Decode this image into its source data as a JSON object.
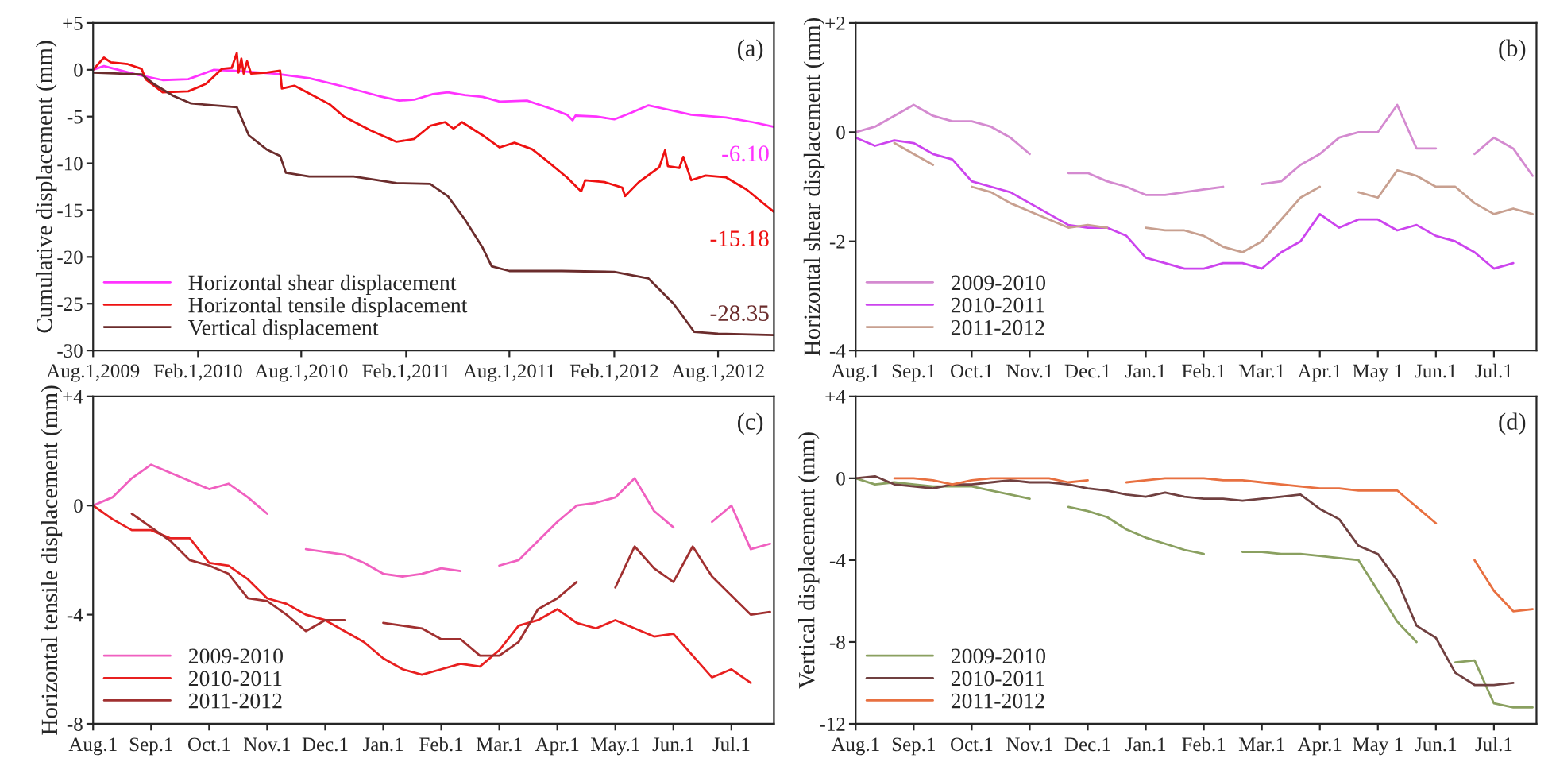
{
  "chart_data": [
    {
      "type": "line",
      "ylabel": "Cumulative displacement (mm)",
      "xlim": [
        "2009-08-01",
        "2012-11-07"
      ],
      "xticks": [
        {
          "value": "2009-08-01",
          "label": "Aug.1,2009"
        },
        {
          "value": "2010-02-01",
          "label": "Feb.1,2010"
        },
        {
          "value": "2010-08-01",
          "label": "Aug.1,2010"
        },
        {
          "value": "2011-02-01",
          "label": "Feb.1,2011"
        },
        {
          "value": "2011-08-01",
          "label": "Aug.1,2011"
        },
        {
          "value": "2012-02-01",
          "label": "Feb.1,2012"
        },
        {
          "value": "2012-08-01",
          "label": "Aug.1,2012"
        }
      ],
      "ylim": [
        -30,
        5
      ],
      "yticks": [
        {
          "value": 5,
          "label": "+5"
        },
        0,
        -5,
        -10,
        -15,
        -20,
        -25,
        -30
      ],
      "grid": false,
      "legend": "bottom left",
      "annotations": [
        "(a)",
        {
          "text": "-6.10",
          "x": "2012-11-07",
          "y": -6.1
        },
        {
          "text": "-15.18",
          "x": "2012-11-07",
          "y": -15.18
        },
        {
          "text": "-28.35",
          "x": "2012-11-07",
          "y": -28.35
        }
      ],
      "series": [
        {
          "name": "Horizontal shear displacement",
          "color": "#ff33ff",
          "x": [
            "2009-08-01",
            "2009-08-20",
            "2009-10-15",
            "2009-12-01",
            "2010-01-15",
            "2010-03-01",
            "2010-04-01",
            "2010-06-15",
            "2010-08-15",
            "2010-10-15",
            "2010-12-15",
            "2011-01-20",
            "2011-02-15",
            "2011-03-20",
            "2011-04-15",
            "2011-05-15",
            "2011-06-15",
            "2011-07-15",
            "2011-09-01",
            "2011-10-15",
            "2011-11-10",
            "2011-11-20",
            "2011-11-25",
            "2012-01-01",
            "2012-02-01",
            "2012-03-01",
            "2012-04-01",
            "2012-05-01",
            "2012-06-15",
            "2012-08-15",
            "2012-10-01",
            "2012-11-07"
          ],
          "values": [
            0,
            0.4,
            -0.5,
            -1.1,
            -1.0,
            0,
            -0.1,
            -0.4,
            -0.9,
            -1.8,
            -2.8,
            -3.3,
            -3.2,
            -2.6,
            -2.4,
            -2.7,
            -2.9,
            -3.4,
            -3.3,
            -4.2,
            -4.8,
            -5.4,
            -4.9,
            -5.0,
            -5.3,
            -4.6,
            -3.8,
            -4.2,
            -4.8,
            -5.1,
            -5.6,
            -6.1
          ]
        },
        {
          "name": "Horizontal tensile displacement",
          "color": "#ee1111",
          "x": [
            "2009-08-01",
            "2009-08-20",
            "2009-09-01",
            "2009-10-01",
            "2009-10-25",
            "2009-11-01",
            "2009-12-01",
            "2010-01-15",
            "2010-02-15",
            "2010-03-15",
            "2010-04-01",
            "2010-04-10",
            "2010-04-13",
            "2010-04-18",
            "2010-04-22",
            "2010-04-28",
            "2010-05-05",
            "2010-06-01",
            "2010-06-25",
            "2010-06-28",
            "2010-07-20",
            "2010-08-20",
            "2010-09-20",
            "2010-10-15",
            "2010-12-01",
            "2011-01-15",
            "2011-02-15",
            "2011-03-15",
            "2011-04-10",
            "2011-04-25",
            "2011-05-10",
            "2011-06-15",
            "2011-07-15",
            "2011-08-10",
            "2011-09-10",
            "2011-10-01",
            "2011-11-10",
            "2011-12-05",
            "2011-12-12",
            "2012-01-15",
            "2012-02-15",
            "2012-02-20",
            "2012-03-15",
            "2012-04-20",
            "2012-04-30",
            "2012-05-05",
            "2012-05-25",
            "2012-06-01",
            "2012-06-15",
            "2012-07-10",
            "2012-08-15",
            "2012-09-20",
            "2012-10-20",
            "2012-11-07"
          ],
          "values": [
            0,
            1.3,
            0.8,
            0.6,
            0.1,
            -1.0,
            -2.4,
            -2.3,
            -1.5,
            0.1,
            0.2,
            1.8,
            -0.3,
            1.2,
            -0.4,
            0.9,
            -0.4,
            -0.3,
            -0.1,
            -2.0,
            -1.7,
            -2.7,
            -3.7,
            -5.0,
            -6.5,
            -7.7,
            -7.4,
            -6.0,
            -5.6,
            -6.3,
            -5.6,
            -7.0,
            -8.3,
            -7.8,
            -8.5,
            -9.5,
            -11.5,
            -13.0,
            -11.8,
            -12.0,
            -12.6,
            -13.5,
            -12.0,
            -10.4,
            -8.6,
            -10.3,
            -10.5,
            -9.3,
            -11.8,
            -11.3,
            -11.5,
            -12.8,
            -14.3,
            -15.18
          ]
        },
        {
          "name": "Vertical displacement",
          "color": "#6b2c2c",
          "x": [
            "2009-08-01",
            "2009-10-25",
            "2009-11-15",
            "2009-12-20",
            "2010-01-20",
            "2010-04-10",
            "2010-05-01",
            "2010-06-01",
            "2010-06-25",
            "2010-07-05",
            "2010-08-15",
            "2010-11-01",
            "2011-01-15",
            "2011-03-15",
            "2011-04-15",
            "2011-05-15",
            "2011-06-15",
            "2011-07-01",
            "2011-08-01",
            "2011-11-01",
            "2012-02-01",
            "2012-04-01",
            "2012-05-15",
            "2012-06-20",
            "2012-08-01",
            "2012-11-07"
          ],
          "values": [
            -0.3,
            -0.5,
            -1.5,
            -2.8,
            -3.6,
            -4.0,
            -7.0,
            -8.5,
            -9.2,
            -11.0,
            -11.4,
            -11.4,
            -12.1,
            -12.2,
            -13.5,
            -16.0,
            -19.0,
            -21.0,
            -21.5,
            -21.5,
            -21.6,
            -22.3,
            -25.0,
            -28.0,
            -28.2,
            -28.35
          ]
        }
      ]
    },
    {
      "type": "line",
      "ylabel": "Horizontal shear displacement (mm)",
      "categories": [
        "Aug.1",
        null,
        null,
        "Sep.1",
        null,
        null,
        "Oct.1",
        null,
        null,
        "Nov.1",
        null,
        null,
        "Dec.1",
        null,
        null,
        "Jan.1",
        null,
        null,
        "Feb.1",
        null,
        null,
        "Mar.1",
        null,
        null,
        "Apr.1",
        null,
        null,
        "May 1",
        null,
        null,
        "Jun.1",
        null,
        null,
        "Jul.1",
        null,
        null
      ],
      "ylim": [
        -4,
        2
      ],
      "yticks": [
        {
          "value": 2,
          "label": "+2"
        },
        0,
        -2,
        -4
      ],
      "grid": false,
      "legend": "bottom left",
      "annotations": [
        "(b)"
      ],
      "series": [
        {
          "name": "2009-2010",
          "color": "#d48ad0",
          "values": [
            0,
            0.1,
            0.3,
            0.5,
            0.3,
            0.2,
            0.2,
            0.1,
            -0.1,
            -0.4,
            null,
            -0.75,
            -0.75,
            -0.9,
            -1.0,
            -1.15,
            -1.15,
            -1.1,
            -1.05,
            -1.0,
            null,
            -0.95,
            -0.9,
            -0.6,
            -0.4,
            -0.1,
            0.0,
            0.0,
            0.5,
            -0.3,
            -0.3,
            null,
            -0.4,
            -0.1,
            -0.3,
            -0.8
          ]
        },
        {
          "name": "2010-2011",
          "color": "#cc44ee",
          "values": [
            -0.1,
            -0.25,
            -0.15,
            -0.2,
            -0.4,
            -0.5,
            -0.9,
            -1.0,
            -1.1,
            -1.3,
            -1.5,
            -1.7,
            -1.75,
            -1.75,
            -1.9,
            -2.3,
            -2.4,
            -2.5,
            -2.5,
            -2.4,
            -2.4,
            -2.5,
            -2.2,
            -2.0,
            -1.5,
            -1.75,
            -1.6,
            -1.6,
            -1.8,
            -1.7,
            -1.9,
            -2.0,
            -2.2,
            -2.5,
            -2.4,
            null
          ]
        },
        {
          "name": "2011-2012",
          "color": "#c8a090",
          "values": [
            null,
            null,
            -0.2,
            -0.4,
            -0.6,
            null,
            -1.0,
            -1.1,
            -1.3,
            -1.45,
            -1.6,
            -1.75,
            -1.7,
            -1.75,
            null,
            -1.75,
            -1.8,
            -1.8,
            -1.9,
            -2.1,
            -2.2,
            -2.0,
            -1.6,
            -1.2,
            -1.0,
            null,
            -1.1,
            -1.2,
            -0.7,
            -0.8,
            -1.0,
            -1.0,
            -1.3,
            -1.5,
            -1.4,
            -1.5
          ]
        }
      ]
    },
    {
      "type": "line",
      "ylabel": "Horizontal tensile displacement (mm)",
      "categories": [
        "Aug.1",
        null,
        null,
        "Sep.1",
        null,
        null,
        "Oct.1",
        null,
        null,
        "Nov.1",
        null,
        null,
        "Dec.1",
        null,
        null,
        "Jan.1",
        null,
        null,
        "Feb.1",
        null,
        null,
        "Mar.1",
        null,
        null,
        "Apr.1",
        null,
        null,
        "May.1",
        null,
        null,
        "Jun.1",
        null,
        null,
        "Jul.1",
        null,
        null
      ],
      "ylim": [
        -8,
        4
      ],
      "yticks": [
        {
          "value": 4,
          "label": "+4"
        },
        0,
        -4,
        -8
      ],
      "grid": false,
      "legend": "bottom left",
      "annotations": [
        "(c)"
      ],
      "series": [
        {
          "name": "2009-2010",
          "color": "#f060c0",
          "values": [
            0,
            0.3,
            1.0,
            1.5,
            1.2,
            0.9,
            0.6,
            0.8,
            0.3,
            -0.3,
            null,
            -1.6,
            -1.7,
            -1.8,
            -2.1,
            -2.5,
            -2.6,
            -2.5,
            -2.3,
            -2.4,
            null,
            -2.2,
            -2.0,
            -1.3,
            -0.6,
            0.0,
            0.1,
            0.3,
            1.0,
            -0.2,
            -0.8,
            null,
            -0.6,
            0.0,
            -1.6,
            -1.4
          ]
        },
        {
          "name": "2010-2011",
          "color": "#e82020",
          "values": [
            0,
            -0.5,
            -0.9,
            -0.9,
            -1.2,
            -1.2,
            -2.1,
            -2.2,
            -2.7,
            -3.4,
            -3.6,
            -4.0,
            -4.2,
            -4.6,
            -5.0,
            -5.6,
            -6.0,
            -6.2,
            -6.0,
            -5.8,
            -5.9,
            -5.3,
            -4.4,
            -4.2,
            -3.8,
            -4.3,
            -4.5,
            -4.2,
            -4.5,
            -4.8,
            -4.7,
            -5.5,
            -6.3,
            -6.0,
            -6.5,
            null
          ]
        },
        {
          "name": "2011-2012",
          "color": "#a03030",
          "values": [
            null,
            null,
            -0.3,
            -0.8,
            -1.3,
            -2.0,
            -2.2,
            -2.5,
            -3.4,
            -3.5,
            -4.0,
            -4.6,
            -4.2,
            -4.2,
            null,
            -4.3,
            -4.4,
            -4.5,
            -4.9,
            -4.9,
            -5.5,
            -5.5,
            -5.0,
            -3.8,
            -3.4,
            -2.8,
            null,
            -3.0,
            -1.5,
            -2.3,
            -2.8,
            -1.5,
            -2.6,
            -3.3,
            -4.0,
            -3.9
          ]
        }
      ]
    },
    {
      "type": "line",
      "ylabel": "Vertical displacement (mm)",
      "categories": [
        "Aug.1",
        null,
        null,
        "Sep.1",
        null,
        null,
        "Oct.1",
        null,
        null,
        "Nov.1",
        null,
        null,
        "Dec.1",
        null,
        null,
        "Jan.1",
        null,
        null,
        "Feb.1",
        null,
        null,
        "Mar.1",
        null,
        null,
        "Apr.1",
        null,
        null,
        "May 1",
        null,
        null,
        "Jun.1",
        null,
        null,
        "Jul.1",
        null,
        null
      ],
      "ylim": [
        -12,
        4
      ],
      "yticks": [
        {
          "value": 4,
          "label": "+4"
        },
        0,
        -4,
        -8,
        -12
      ],
      "grid": false,
      "legend": "bottom left",
      "annotations": [
        "(d)"
      ],
      "series": [
        {
          "name": "2009-2010",
          "color": "#8aa060",
          "values": [
            0,
            -0.3,
            -0.2,
            -0.3,
            -0.4,
            -0.4,
            -0.4,
            -0.6,
            -0.8,
            -1.0,
            null,
            -1.4,
            -1.6,
            -1.9,
            -2.5,
            -2.9,
            -3.2,
            -3.5,
            -3.7,
            null,
            -3.6,
            -3.6,
            -3.7,
            -3.7,
            -3.8,
            -3.9,
            -4.0,
            -5.5,
            -7.0,
            -8.0,
            null,
            -9.0,
            -8.9,
            -11.0,
            -11.2,
            -11.2
          ]
        },
        {
          "name": "2010-2011",
          "color": "#704040",
          "values": [
            0,
            0.1,
            -0.3,
            -0.4,
            -0.5,
            -0.3,
            -0.3,
            -0.2,
            -0.1,
            -0.2,
            -0.2,
            -0.3,
            -0.5,
            -0.6,
            -0.8,
            -0.9,
            -0.7,
            -0.9,
            -1.0,
            -1.0,
            -1.1,
            -1.0,
            -0.9,
            -0.8,
            -1.5,
            -2.0,
            -3.3,
            -3.7,
            -5.0,
            -7.2,
            -7.8,
            -9.5,
            -10.1,
            -10.1,
            -10.0,
            null
          ]
        },
        {
          "name": "2011-2012",
          "color": "#e87040",
          "values": [
            null,
            null,
            0.0,
            0.0,
            -0.1,
            -0.3,
            -0.1,
            0.0,
            0.0,
            0.0,
            0.0,
            -0.2,
            -0.1,
            null,
            -0.2,
            -0.1,
            0.0,
            0.0,
            0.0,
            -0.1,
            -0.1,
            -0.2,
            -0.3,
            -0.4,
            -0.5,
            -0.5,
            -0.6,
            -0.6,
            -0.6,
            -1.4,
            -2.2,
            null,
            -4.0,
            -5.5,
            -6.5,
            -6.4
          ]
        }
      ]
    }
  ]
}
